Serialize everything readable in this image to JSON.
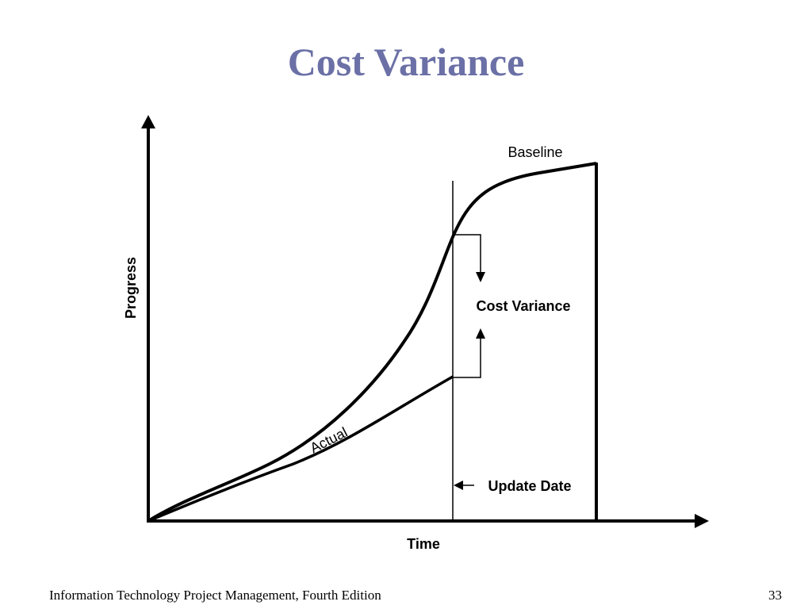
{
  "slide": {
    "title": "Cost Variance",
    "footer": "Information Technology Project Management, Fourth Edition",
    "page_number": "33"
  },
  "diagram": {
    "y_axis_label": "Progress",
    "x_axis_label": "Time",
    "baseline_label": "Baseline",
    "actual_label": "Actual",
    "variance_label": "Cost Variance",
    "update_date_label": "Update Date"
  }
}
